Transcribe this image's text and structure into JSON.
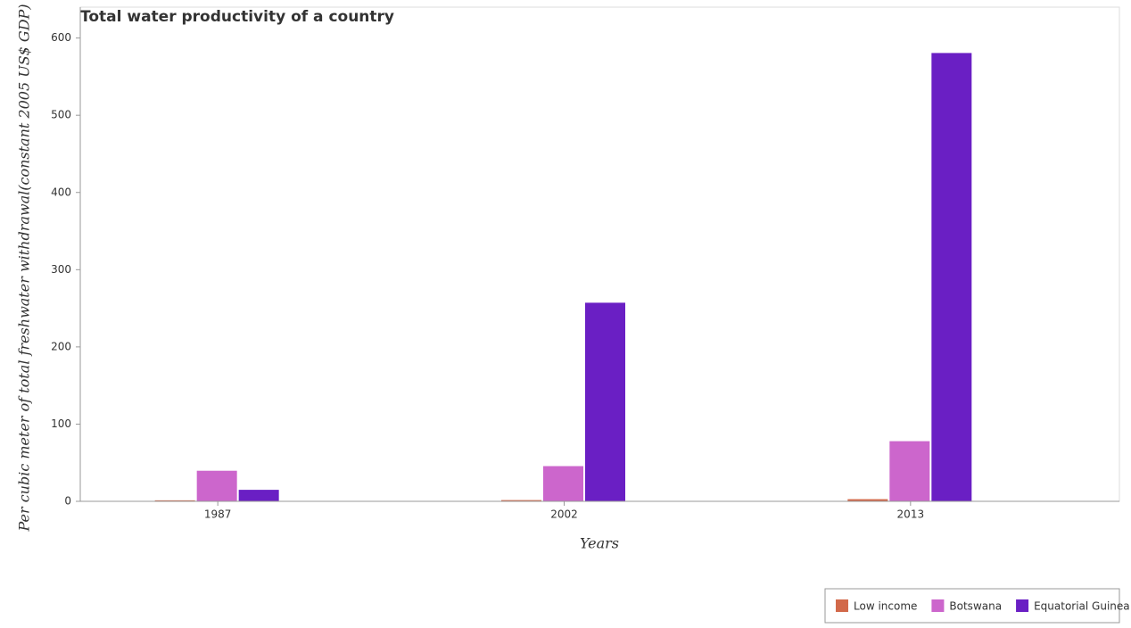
{
  "chart_data": {
    "type": "bar",
    "title": "Total water productivity of a country",
    "x_label": "Years",
    "y_label": "Per cubic meter of total freshwater withdrawal(constant 2005 US$ GDP)",
    "categories": [
      "1987",
      "2002",
      "2013"
    ],
    "series": [
      {
        "name": "Low income",
        "color": "#d2694a",
        "values": [
          1.3,
          1.6,
          2.8
        ]
      },
      {
        "name": "Botswana",
        "color": "#cc66cc",
        "values": [
          39.6,
          45.6,
          77.9
        ]
      },
      {
        "name": "Equatorial Guinea",
        "color": "#6a1fc4",
        "values": [
          14.9,
          257.2,
          580.6
        ]
      }
    ],
    "ylim": [
      0,
      640
    ],
    "yticks": [
      0,
      100,
      200,
      300,
      400,
      500,
      600
    ],
    "legend": "bottom-right"
  }
}
